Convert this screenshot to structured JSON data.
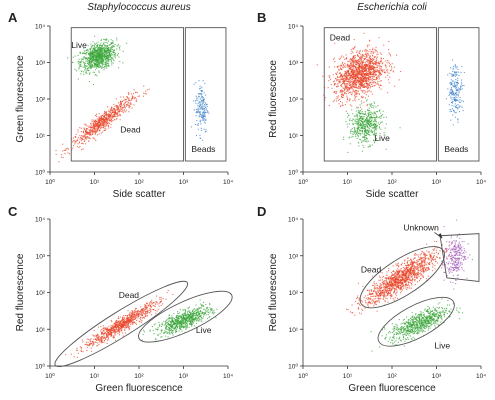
{
  "colors": {
    "live": "#3aa63a",
    "dead": "#e8452a",
    "beads": "#3b7fc8",
    "unknown": "#a35bb8",
    "gate": "#555555"
  },
  "chart_data": [
    {
      "panel": "A",
      "type": "scatter",
      "title": "Staphylococcus aureus",
      "xlabel": "Side scatter",
      "ylabel": "Green fluorescence",
      "xscale": "log",
      "yscale": "log",
      "xlim": [
        1,
        10000
      ],
      "ylim": [
        1,
        10000
      ],
      "tick_labels": [
        "10⁰",
        "10¹",
        "10²",
        "10³",
        "10⁴"
      ],
      "populations": [
        {
          "label": "Live",
          "color": "live",
          "center": [
            12,
            1500
          ],
          "spread": [
            0.2,
            0.18
          ],
          "tilt": 0.35,
          "n": 900
        },
        {
          "label": "Dead",
          "color": "dead",
          "center": [
            15,
            25
          ],
          "spread": [
            0.35,
            0.12
          ],
          "tilt": 0.9,
          "n": 700
        },
        {
          "label": "Beads",
          "color": "beads",
          "center": [
            2500,
            60
          ],
          "spread": [
            0.07,
            0.35
          ],
          "tilt": 0,
          "n": 170
        }
      ],
      "annotations": [
        {
          "text": "Live",
          "at": [
            3,
            2500
          ]
        },
        {
          "text": "Dead",
          "at": [
            38,
            12
          ]
        },
        {
          "text": "Beads",
          "at": [
            1500,
            3.5
          ]
        }
      ],
      "gates": [
        {
          "shape": "rect",
          "x": [
            3,
            1000
          ],
          "y": [
            2,
            9000
          ]
        },
        {
          "shape": "rect",
          "x": [
            1100,
            9000
          ],
          "y": [
            2,
            9000
          ]
        }
      ]
    },
    {
      "panel": "B",
      "type": "scatter",
      "title": "Escherichia coli",
      "xlabel": "Side scatter",
      "ylabel": "Red fluorescence",
      "xscale": "log",
      "yscale": "log",
      "xlim": [
        1,
        10000
      ],
      "ylim": [
        1,
        10000
      ],
      "tick_labels": [
        "10⁰",
        "10¹",
        "10²",
        "10³",
        "10⁴"
      ],
      "populations": [
        {
          "label": "Dead",
          "color": "dead",
          "center": [
            18,
            500
          ],
          "spread": [
            0.28,
            0.3
          ],
          "tilt": 0.4,
          "n": 1400
        },
        {
          "label": "Live",
          "color": "live",
          "center": [
            25,
            20
          ],
          "spread": [
            0.18,
            0.25
          ],
          "tilt": 0.2,
          "n": 500
        },
        {
          "label": "Beads",
          "color": "beads",
          "center": [
            2600,
            180
          ],
          "spread": [
            0.08,
            0.35
          ],
          "tilt": 0,
          "n": 200
        }
      ],
      "annotations": [
        {
          "text": "Dead",
          "at": [
            4,
            4000
          ]
        },
        {
          "text": "Live",
          "at": [
            40,
            7
          ]
        },
        {
          "text": "Beads",
          "at": [
            1500,
            3.5
          ]
        }
      ],
      "gates": [
        {
          "shape": "rect",
          "x": [
            3,
            1000
          ],
          "y": [
            2,
            9000
          ]
        },
        {
          "shape": "rect",
          "x": [
            1100,
            9000
          ],
          "y": [
            2,
            9000
          ]
        }
      ]
    },
    {
      "panel": "C",
      "type": "scatter",
      "title": "",
      "xlabel": "Green fluorescence",
      "ylabel": "Red fluorescence",
      "xscale": "log",
      "yscale": "log",
      "xlim": [
        1,
        10000
      ],
      "ylim": [
        1,
        10000
      ],
      "tick_labels": [
        "10⁰",
        "10¹",
        "10²",
        "10³",
        "10⁴"
      ],
      "populations": [
        {
          "label": "Dead",
          "color": "dead",
          "center": [
            40,
            14
          ],
          "spread": [
            0.42,
            0.1
          ],
          "tilt": 0.72,
          "n": 800
        },
        {
          "label": "Live",
          "color": "live",
          "center": [
            1000,
            18
          ],
          "spread": [
            0.3,
            0.12
          ],
          "tilt": 0.45,
          "n": 700
        }
      ],
      "annotations": [
        {
          "text": "Dead",
          "at": [
            35,
            70
          ]
        },
        {
          "text": "Live",
          "at": [
            1900,
            8
          ]
        }
      ],
      "gates": [
        {
          "shape": "ellipse",
          "center": [
            40,
            14
          ],
          "rx_dec": 1.75,
          "ry_dec": 0.28,
          "angle_deg": 32
        },
        {
          "shape": "ellipse",
          "center": [
            1100,
            22
          ],
          "rx_dec": 1.15,
          "ry_dec": 0.33,
          "angle_deg": 25
        }
      ]
    },
    {
      "panel": "D",
      "type": "scatter",
      "title": "",
      "xlabel": "Green fluorescence",
      "ylabel": "Red fluorescence",
      "xscale": "log",
      "yscale": "log",
      "xlim": [
        1,
        10000
      ],
      "ylim": [
        1,
        10000
      ],
      "tick_labels": [
        "10⁰",
        "10¹",
        "10²",
        "10³",
        "10⁴"
      ],
      "populations": [
        {
          "label": "Dead",
          "color": "dead",
          "center": [
            150,
            250
          ],
          "spread": [
            0.4,
            0.18
          ],
          "tilt": 0.75,
          "n": 1200
        },
        {
          "label": "Live",
          "color": "live",
          "center": [
            400,
            15
          ],
          "spread": [
            0.32,
            0.15
          ],
          "tilt": 0.5,
          "n": 700
        },
        {
          "label": "Unknown",
          "color": "unknown",
          "center": [
            2500,
            900
          ],
          "spread": [
            0.12,
            0.28
          ],
          "tilt": 0.6,
          "n": 250
        }
      ],
      "annotations": [
        {
          "text": "Dead",
          "at": [
            20,
            350
          ]
        },
        {
          "text": "Live",
          "at": [
            900,
            3
          ]
        },
        {
          "text": "Unknown",
          "at": [
            180,
            4800
          ]
        }
      ],
      "gates": [
        {
          "shape": "ellipse",
          "center": [
            170,
            260
          ],
          "rx_dec": 1.1,
          "ry_dec": 0.4,
          "angle_deg": 33
        },
        {
          "shape": "ellipse",
          "center": [
            350,
            16
          ],
          "rx_dec": 0.95,
          "ry_dec": 0.36,
          "angle_deg": 28
        },
        {
          "shape": "polygon",
          "points": [
            [
              1200,
              3500
            ],
            [
              9000,
              4000
            ],
            [
              9000,
              200
            ],
            [
              1700,
              250
            ]
          ]
        }
      ]
    }
  ]
}
